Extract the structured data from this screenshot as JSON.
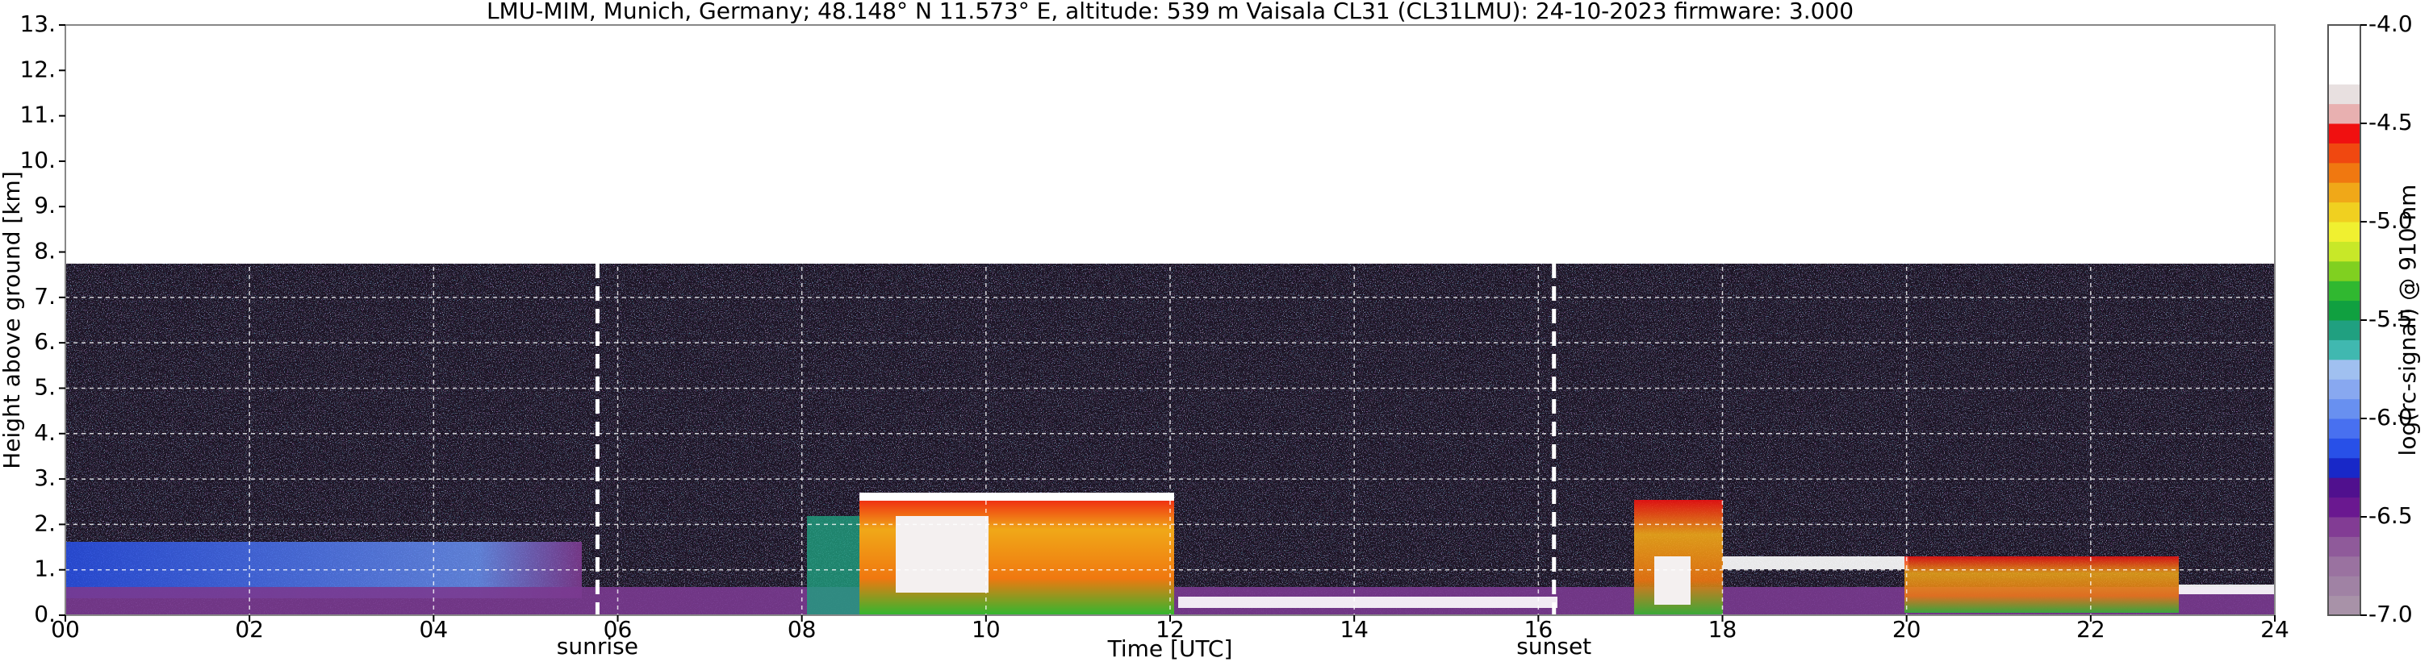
{
  "chart_data": {
    "type": "heatmap",
    "title": "LMU-MIM, Munich, Germany; 48.148° N 11.573° E, altitude: 539 m    Vaisala CL31 (CL31LMU): 24-10-2023    firmware: 3.000",
    "xlabel": "Time [UTC]",
    "ylabel": "Height above ground [km]",
    "xlim": [
      0,
      24
    ],
    "xticks": [
      {
        "value": 0,
        "label": "00"
      },
      {
        "value": 2,
        "label": "02"
      },
      {
        "value": 4,
        "label": "04"
      },
      {
        "value": 6,
        "label": "06"
      },
      {
        "value": 8,
        "label": "08"
      },
      10,
      12,
      14,
      16,
      18,
      20,
      22,
      24
    ],
    "ylim": [
      0,
      13
    ],
    "yticks": [
      {
        "value": 0,
        "label": "0."
      },
      {
        "value": 1,
        "label": "1."
      },
      {
        "value": 2,
        "label": "2."
      },
      {
        "value": 3,
        "label": "3."
      },
      {
        "value": 4,
        "label": "4."
      },
      {
        "value": 5,
        "label": "5."
      },
      {
        "value": 6,
        "label": "6."
      },
      {
        "value": 7,
        "label": "7."
      },
      {
        "value": 8,
        "label": "8."
      },
      {
        "value": 9,
        "label": "9."
      },
      {
        "value": 10,
        "label": "10."
      },
      {
        "value": 11,
        "label": "11."
      },
      {
        "value": 12,
        "label": "12."
      },
      {
        "value": 13,
        "label": "13."
      }
    ],
    "grid": true,
    "colorbar_label": "log(rc-signal) @ 910 nm",
    "clim": [
      -7,
      -4
    ],
    "cticks": [
      {
        "value": -7,
        "label": "-7.0"
      },
      -6.5,
      {
        "value": -6,
        "label": "-6.0"
      },
      -5.5,
      {
        "value": -5,
        "label": "-5.0"
      },
      -4.5,
      {
        "value": -4,
        "label": "-4.0"
      }
    ],
    "colormap": [
      "#a892a8",
      "#a082a4",
      "#9a72a0",
      "#8f5a9a",
      "#823c94",
      "#6a1890",
      "#50108e",
      "#1828c8",
      "#2850e8",
      "#4870f0",
      "#6890f0",
      "#88a8f0",
      "#a0c0f0",
      "#40b8b0",
      "#20a080",
      "#10a040",
      "#30b830",
      "#80d020",
      "#c8e828",
      "#f0f030",
      "#f0d020",
      "#f0a818",
      "#f07810",
      "#f04810",
      "#f01010",
      "#e8b0b0",
      "#e8e0e0",
      "#ffffff",
      "#ffffff",
      "#ffffff"
    ],
    "annotations": [
      {
        "label": "sunrise",
        "x": 5.78
      },
      {
        "label": "sunset",
        "x": 16.17
      }
    ]
  }
}
